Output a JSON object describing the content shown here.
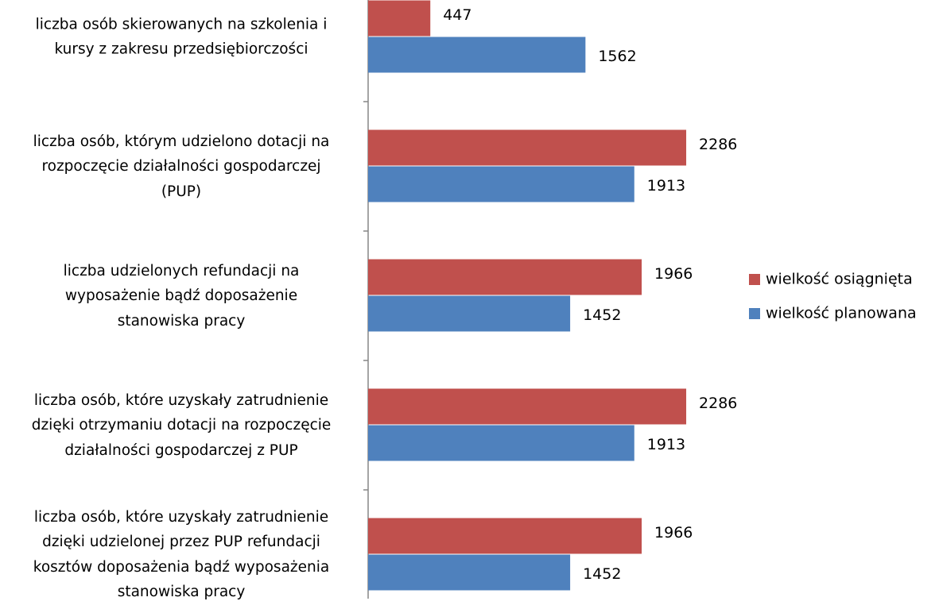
{
  "chart_data": {
    "type": "barh",
    "categories": [
      "liczba osób skierowanych na szkolenia i\nkursy z zakresu przedsiębiorczości",
      "liczba osób, którym udzielono dotacji na\nrozpoczęcie działalności gospodarczej\n(PUP)",
      "liczba udzielonych refundacji na\nwyposażenie bądź doposażenie\nstanowiska pracy",
      "liczba osób, które uzyskały zatrudnienie\ndzięki otrzymaniu dotacji na rozpoczęcie\ndziałalności gospodarczej z PUP",
      "liczba osób, które uzyskały zatrudnienie\ndzięki udzielonej przez PUP refundacji\nkosztów doposażenia bądź wyposażenia\nstanowiska pracy"
    ],
    "series": [
      {
        "name": "wielkość osiągnięta",
        "color": "#c0504d",
        "values": [
          447,
          2286,
          1966,
          2286,
          1966
        ]
      },
      {
        "name": "wielkość planowana",
        "color": "#4f81bd",
        "values": [
          1562,
          1913,
          1452,
          1913,
          1452
        ]
      }
    ],
    "xlim": [
      0,
      3000
    ],
    "legend": "right"
  }
}
